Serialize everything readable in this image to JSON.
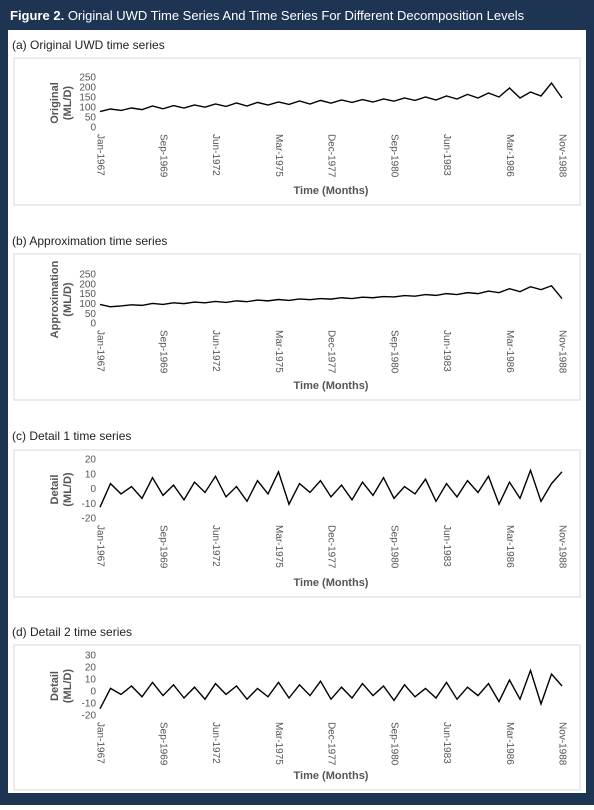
{
  "figure_title": {
    "label": "Figure 2.",
    "text": "Original UWD Time Series And Time Series For Different Decomposition Levels"
  },
  "chart_data": [
    {
      "type": "line",
      "subtitle": "(a) Original UWD time series",
      "xlabel": "Time (Months)",
      "ylabel": [
        "Original",
        "(ML/D)"
      ],
      "categories": [
        "Jan-1967",
        null,
        null,
        null,
        null,
        null,
        "Sep-1969",
        null,
        null,
        null,
        null,
        "Jun-1972",
        null,
        null,
        null,
        null,
        null,
        "Mar-1975",
        null,
        null,
        null,
        null,
        "Dec-1977",
        null,
        null,
        null,
        null,
        null,
        "Sep-1980",
        null,
        null,
        null,
        null,
        "Jun-1983",
        null,
        null,
        null,
        null,
        null,
        "Mar-1986",
        null,
        null,
        null,
        null,
        "Nov-1988"
      ],
      "series": [
        {
          "color": "#000000",
          "values": [
            82,
            95,
            88,
            100,
            92,
            110,
            96,
            112,
            100,
            115,
            104,
            120,
            108,
            125,
            110,
            128,
            115,
            130,
            118,
            135,
            120,
            138,
            124,
            140,
            128,
            142,
            130,
            145,
            134,
            150,
            138,
            155,
            140,
            160,
            145,
            168,
            150,
            175,
            155,
            200,
            150,
            180,
            160,
            225,
            150
          ]
        }
      ],
      "ylim": [
        0,
        250
      ],
      "yticks": [
        0,
        50,
        100,
        150,
        200,
        250
      ],
      "grid": false
    },
    {
      "type": "line",
      "subtitle": "(b) Approximation time series",
      "xlabel": "Time (Months)",
      "ylabel": [
        "Approximation",
        "(ML/D)"
      ],
      "categories": [
        "Jan-1967",
        null,
        null,
        null,
        null,
        null,
        "Sep-1969",
        null,
        null,
        null,
        null,
        "Jun-1972",
        null,
        null,
        null,
        null,
        null,
        "Mar-1975",
        null,
        null,
        null,
        null,
        "Dec-1977",
        null,
        null,
        null,
        null,
        null,
        "Sep-1980",
        null,
        null,
        null,
        null,
        "Jun-1983",
        null,
        null,
        null,
        null,
        null,
        "Mar-1986",
        null,
        null,
        null,
        null,
        "Nov-1988"
      ],
      "series": [
        {
          "color": "#000000",
          "values": [
            100,
            88,
            92,
            98,
            95,
            105,
            100,
            108,
            104,
            112,
            108,
            115,
            110,
            118,
            114,
            122,
            118,
            125,
            120,
            128,
            124,
            130,
            127,
            134,
            130,
            137,
            134,
            140,
            138,
            145,
            142,
            150,
            146,
            155,
            150,
            160,
            155,
            168,
            160,
            180,
            165,
            190,
            175,
            195,
            130
          ]
        }
      ],
      "ylim": [
        0,
        250
      ],
      "yticks": [
        0,
        50,
        100,
        150,
        200,
        250
      ],
      "grid": false
    },
    {
      "type": "line",
      "subtitle": "(c) Detail 1 time series",
      "xlabel": "Time (Months)",
      "ylabel": [
        "Detail",
        "(ML/D)"
      ],
      "categories": [
        "Jan-1967",
        null,
        null,
        null,
        null,
        null,
        "Sep-1969",
        null,
        null,
        null,
        null,
        "Jun-1972",
        null,
        null,
        null,
        null,
        null,
        "Mar-1975",
        null,
        null,
        null,
        null,
        "Dec-1977",
        null,
        null,
        null,
        null,
        null,
        "Sep-1980",
        null,
        null,
        null,
        null,
        "Jun-1983",
        null,
        null,
        null,
        null,
        null,
        "Mar-1986",
        null,
        null,
        null,
        null,
        "Nov-1988"
      ],
      "series": [
        {
          "color": "#000000",
          "values": [
            -12,
            4,
            -3,
            2,
            -6,
            8,
            -4,
            3,
            -7,
            5,
            -2,
            9,
            -5,
            2,
            -8,
            6,
            -3,
            12,
            -10,
            4,
            -2,
            6,
            -5,
            3,
            -7,
            5,
            -4,
            8,
            -6,
            2,
            -3,
            7,
            -8,
            4,
            -5,
            6,
            -2,
            9,
            -10,
            5,
            -6,
            13,
            -8,
            4,
            12
          ]
        }
      ],
      "ylim": [
        -20,
        20
      ],
      "yticks": [
        -20,
        -10,
        0,
        10,
        20
      ],
      "grid": false
    },
    {
      "type": "line",
      "subtitle": "(d) Detail 2 time series",
      "xlabel": "Time (Months)",
      "ylabel": [
        "Detail",
        "(ML/D)"
      ],
      "categories": [
        "Jan-1967",
        null,
        null,
        null,
        null,
        null,
        "Sep-1969",
        null,
        null,
        null,
        null,
        "Jun-1972",
        null,
        null,
        null,
        null,
        null,
        "Mar-1975",
        null,
        null,
        null,
        null,
        "Dec-1977",
        null,
        null,
        null,
        null,
        null,
        "Sep-1980",
        null,
        null,
        null,
        null,
        "Jun-1983",
        null,
        null,
        null,
        null,
        null,
        "Mar-1986",
        null,
        null,
        null,
        null,
        "Nov-1988"
      ],
      "series": [
        {
          "color": "#000000",
          "values": [
            -14,
            3,
            -2,
            5,
            -4,
            8,
            -3,
            6,
            -5,
            4,
            -6,
            7,
            -2,
            5,
            -6,
            3,
            -4,
            8,
            -5,
            6,
            -3,
            9,
            -6,
            4,
            -5,
            7,
            -3,
            5,
            -7,
            6,
            -4,
            3,
            -5,
            8,
            -6,
            4,
            -3,
            7,
            -8,
            10,
            -6,
            18,
            -10,
            15,
            5
          ]
        }
      ],
      "ylim": [
        -20,
        30
      ],
      "yticks": [
        -20,
        -10,
        0,
        10,
        20,
        30
      ],
      "grid": false
    }
  ]
}
